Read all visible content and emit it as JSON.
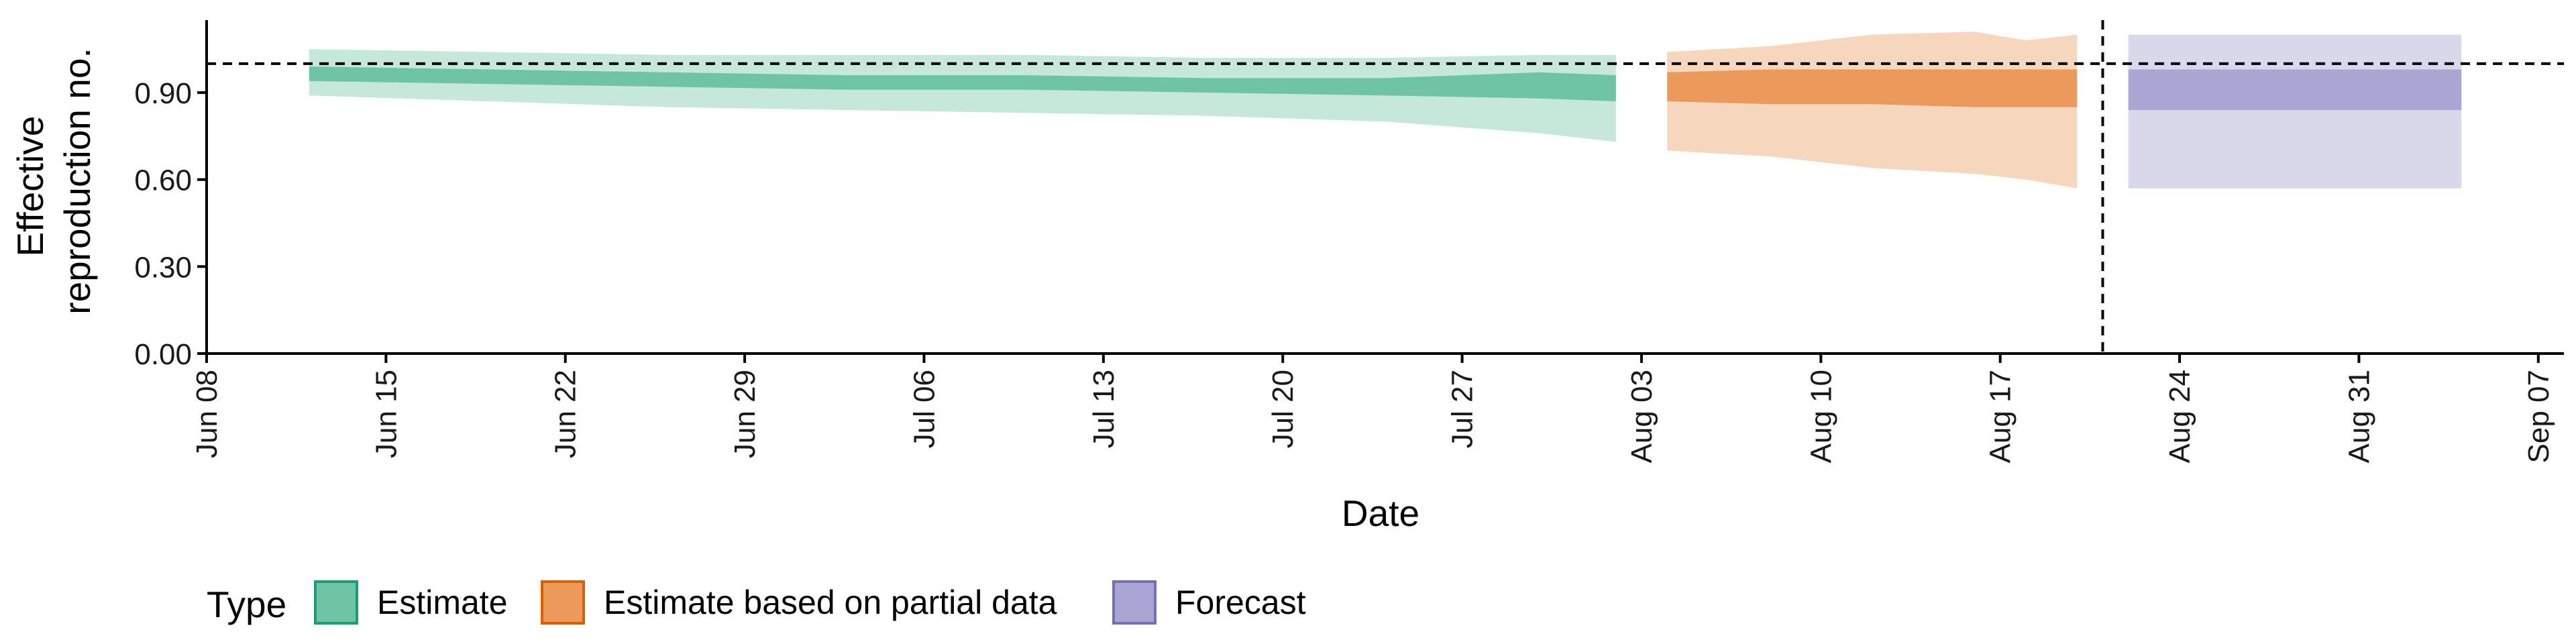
{
  "chart_data": {
    "type": "area",
    "xlabel": "Date",
    "ylabel": [
      "Effective",
      "reproduction no."
    ],
    "x_range": [
      "2020-06-08",
      "2020-09-08"
    ],
    "ylim": [
      0,
      1.15
    ],
    "y_ticks": [
      {
        "value": 0,
        "label": "0.00"
      },
      {
        "value": 0.3,
        "label": "0.30"
      },
      {
        "value": 0.6,
        "label": "0.60"
      },
      {
        "value": 0.9,
        "label": "0.90"
      }
    ],
    "x_ticks": [
      {
        "date": "2020-06-08",
        "label": "Jun 08"
      },
      {
        "date": "2020-06-15",
        "label": "Jun 15"
      },
      {
        "date": "2020-06-22",
        "label": "Jun 22"
      },
      {
        "date": "2020-06-29",
        "label": "Jun 29"
      },
      {
        "date": "2020-07-06",
        "label": "Jul 06"
      },
      {
        "date": "2020-07-13",
        "label": "Jul 13"
      },
      {
        "date": "2020-07-20",
        "label": "Jul 20"
      },
      {
        "date": "2020-07-27",
        "label": "Jul 27"
      },
      {
        "date": "2020-08-03",
        "label": "Aug 03"
      },
      {
        "date": "2020-08-10",
        "label": "Aug 10"
      },
      {
        "date": "2020-08-17",
        "label": "Aug 17"
      },
      {
        "date": "2020-08-24",
        "label": "Aug 24"
      },
      {
        "date": "2020-08-31",
        "label": "Aug 31"
      },
      {
        "date": "2020-09-07",
        "label": "Sep 07"
      }
    ],
    "reference_line_y": 1.0,
    "reference_line_date": "2020-08-21",
    "grid": false,
    "legend": {
      "title": "Type",
      "position": "bottom-left",
      "items": [
        {
          "label": "Estimate",
          "fill": "#6ec4a5",
          "stroke": "#1b9e77"
        },
        {
          "label": "Estimate based on partial data",
          "fill": "#eb9a5c",
          "stroke": "#d95f02"
        },
        {
          "label": "Forecast",
          "fill": "#a9a6d3",
          "stroke": "#7570b3"
        }
      ]
    },
    "series": [
      {
        "type_label": "Estimate",
        "outer_fill": "#c5e8da",
        "inner_fill": "#6ec4a5",
        "points": [
          {
            "date": "2020-06-12",
            "lower90": 0.89,
            "upper90": 1.05,
            "lower50": 0.94,
            "upper50": 0.99
          },
          {
            "date": "2020-06-19",
            "lower90": 0.87,
            "upper90": 1.04,
            "lower50": 0.93,
            "upper50": 0.98
          },
          {
            "date": "2020-06-26",
            "lower90": 0.85,
            "upper90": 1.03,
            "lower50": 0.92,
            "upper50": 0.97
          },
          {
            "date": "2020-07-03",
            "lower90": 0.84,
            "upper90": 1.03,
            "lower50": 0.91,
            "upper50": 0.96
          },
          {
            "date": "2020-07-10",
            "lower90": 0.83,
            "upper90": 1.03,
            "lower50": 0.91,
            "upper50": 0.96
          },
          {
            "date": "2020-07-17",
            "lower90": 0.82,
            "upper90": 1.02,
            "lower50": 0.9,
            "upper50": 0.95
          },
          {
            "date": "2020-07-24",
            "lower90": 0.8,
            "upper90": 1.02,
            "lower50": 0.89,
            "upper50": 0.95
          },
          {
            "date": "2020-07-30",
            "lower90": 0.76,
            "upper90": 1.03,
            "lower50": 0.88,
            "upper50": 0.97
          },
          {
            "date": "2020-08-02",
            "lower90": 0.73,
            "upper90": 1.03,
            "lower50": 0.87,
            "upper50": 0.96
          }
        ]
      },
      {
        "type_label": "Estimate based on partial data",
        "outer_fill": "#f6d7be",
        "inner_fill": "#eb9a5c",
        "points": [
          {
            "date": "2020-08-04",
            "lower90": 0.7,
            "upper90": 1.04,
            "lower50": 0.87,
            "upper50": 0.97
          },
          {
            "date": "2020-08-08",
            "lower90": 0.68,
            "upper90": 1.06,
            "lower50": 0.86,
            "upper50": 0.98
          },
          {
            "date": "2020-08-12",
            "lower90": 0.64,
            "upper90": 1.1,
            "lower50": 0.86,
            "upper50": 0.98
          },
          {
            "date": "2020-08-16",
            "lower90": 0.62,
            "upper90": 1.11,
            "lower50": 0.85,
            "upper50": 0.98
          },
          {
            "date": "2020-08-18",
            "lower90": 0.6,
            "upper90": 1.08,
            "lower50": 0.85,
            "upper50": 0.98
          },
          {
            "date": "2020-08-20",
            "lower90": 0.57,
            "upper90": 1.1,
            "lower50": 0.85,
            "upper50": 0.98
          }
        ]
      },
      {
        "type_label": "Forecast",
        "outer_fill": "#d9d8ea",
        "inner_fill": "#a9a6d3",
        "points": [
          {
            "date": "2020-08-22",
            "lower90": 0.57,
            "upper90": 1.1,
            "lower50": 0.84,
            "upper50": 0.98
          },
          {
            "date": "2020-09-04",
            "lower90": 0.57,
            "upper90": 1.1,
            "lower50": 0.84,
            "upper50": 0.98
          }
        ]
      }
    ]
  }
}
